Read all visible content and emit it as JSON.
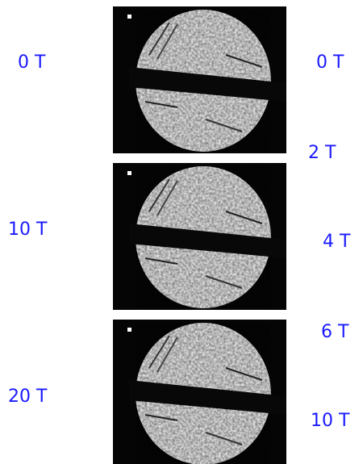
{
  "left_labels": [
    "0 T",
    "10 T",
    "20 T"
  ],
  "right_labels": [
    "0 T",
    "2 T",
    "4 T",
    "6 T",
    "10 T"
  ]
}
